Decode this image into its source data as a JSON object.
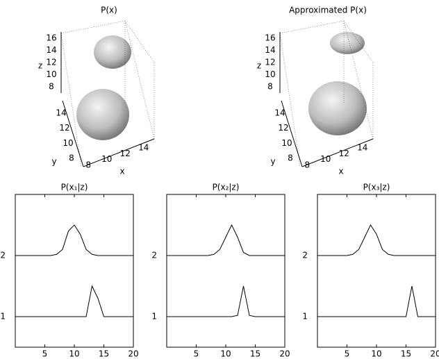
{
  "chart_data": [
    {
      "type": "surface3d",
      "title": "P(x)",
      "xlabel": "x",
      "ylabel": "y",
      "zlabel": "z",
      "xlim": [
        7,
        15
      ],
      "ylim": [
        7,
        15
      ],
      "zlim": [
        7,
        17
      ],
      "xticks": [
        8,
        10,
        12,
        14
      ],
      "yticks": [
        8,
        10,
        12,
        14
      ],
      "zticks": [
        8,
        10,
        12,
        14,
        16
      ]
    },
    {
      "type": "surface3d",
      "title": "Approximated P(x)",
      "xlabel": "x",
      "ylabel": "y",
      "zlabel": "z",
      "xlim": [
        7,
        15
      ],
      "ylim": [
        7,
        15
      ],
      "zlim": [
        7,
        17
      ],
      "xticks": [
        8,
        10,
        12,
        14
      ],
      "yticks": [
        8,
        10,
        12,
        14
      ],
      "zticks": [
        8,
        10,
        12,
        14,
        16
      ]
    },
    {
      "type": "line",
      "title": "P(x₁|z)",
      "x": [
        0,
        1,
        2,
        3,
        4,
        5,
        6,
        7,
        8,
        9,
        10,
        11,
        12,
        13,
        14,
        15,
        16,
        17,
        18,
        19,
        20
      ],
      "series": [
        {
          "color": "#000000",
          "values": [
            2,
            2,
            2,
            2,
            2,
            2,
            2,
            2.02,
            2.1,
            2.4,
            2.5,
            2.35,
            2.1,
            2.02,
            2,
            2,
            2,
            2,
            2,
            2,
            2
          ]
        },
        {
          "color": "#000000",
          "values": [
            1,
            1,
            1,
            1,
            1,
            1,
            1,
            1,
            1,
            1,
            1,
            1,
            1,
            1.5,
            1.3,
            1,
            1,
            1,
            1,
            1,
            1
          ]
        }
      ],
      "xlim": [
        0,
        20
      ],
      "ylim": [
        0.5,
        3
      ],
      "xticks": [
        5,
        10,
        15,
        20
      ],
      "yticks": [
        1,
        2
      ]
    },
    {
      "type": "line",
      "title": "P(x₂|z)",
      "x": [
        0,
        1,
        2,
        3,
        4,
        5,
        6,
        7,
        8,
        9,
        10,
        11,
        12,
        13,
        14,
        15,
        16,
        17,
        18,
        19,
        20
      ],
      "series": [
        {
          "color": "#000000",
          "values": [
            2,
            2,
            2,
            2,
            2,
            2,
            2,
            2,
            2.02,
            2.1,
            2.3,
            2.5,
            2.3,
            2.05,
            2,
            2,
            2,
            2,
            2,
            2,
            2
          ]
        },
        {
          "color": "#000000",
          "values": [
            1,
            1,
            1,
            1,
            1,
            1,
            1,
            1,
            1,
            1,
            1,
            1,
            1.02,
            1.5,
            1.02,
            1,
            1,
            1,
            1,
            1,
            1
          ]
        }
      ],
      "xlim": [
        0,
        20
      ],
      "ylim": [
        0.5,
        3
      ],
      "xticks": [
        5,
        10,
        15,
        20
      ],
      "yticks": [
        1,
        2
      ]
    },
    {
      "type": "line",
      "title": "P(x₃|z)",
      "x": [
        0,
        1,
        2,
        3,
        4,
        5,
        6,
        7,
        8,
        9,
        10,
        11,
        12,
        13,
        14,
        15,
        16,
        17,
        18,
        19,
        20
      ],
      "series": [
        {
          "color": "#000000",
          "values": [
            2,
            2,
            2,
            2,
            2,
            2,
            2.02,
            2.1,
            2.3,
            2.5,
            2.35,
            2.1,
            2.02,
            2,
            2,
            2,
            2,
            2,
            2,
            2,
            2
          ]
        },
        {
          "color": "#000000",
          "values": [
            1,
            1,
            1,
            1,
            1,
            1,
            1,
            1,
            1,
            1,
            1,
            1,
            1,
            1,
            1,
            1,
            1.5,
            1,
            1,
            1,
            1
          ]
        }
      ],
      "xlim": [
        0,
        20
      ],
      "ylim": [
        0.5,
        3
      ],
      "xticks": [
        5,
        10,
        15,
        20
      ],
      "yticks": [
        1,
        2
      ]
    }
  ]
}
